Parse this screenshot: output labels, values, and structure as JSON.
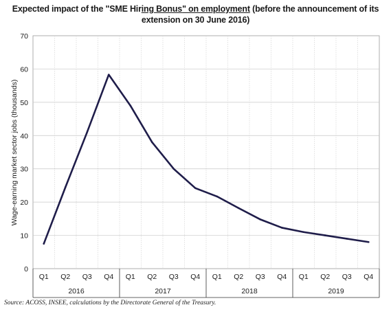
{
  "title": {
    "part1": "Expected impact of the \"SME Hir",
    "part2": "ing Bonus",
    "part3": "\" on employment",
    "part4": " (before the announcement of its",
    "line2": "extension on 30 June 2016)"
  },
  "source": "Source: ACOSS, INSEE, calculations by the Directorate General of the Treasury.",
  "chart_data": {
    "type": "line",
    "title": "Expected impact of the \"SME Hiring Bonus\" on employment (before the announcement of its extension on 30 June 2016)",
    "ylabel": "Wage-earning market sector jobs (thousands)",
    "xlabel": "",
    "ylim": [
      0,
      70
    ],
    "yticks": [
      0,
      10,
      20,
      30,
      40,
      50,
      60,
      70
    ],
    "grid": true,
    "categories": [
      "Q1",
      "Q2",
      "Q3",
      "Q4",
      "Q1",
      "Q2",
      "Q3",
      "Q4",
      "Q1",
      "Q2",
      "Q3",
      "Q4",
      "Q1",
      "Q2",
      "Q3",
      "Q4"
    ],
    "years": [
      "2016",
      "2017",
      "2018",
      "2019"
    ],
    "series": [
      {
        "values": [
          7.5,
          24.5,
          41,
          58.3,
          49,
          38,
          30,
          24.2,
          21.7,
          18.2,
          14.8,
          12.3,
          11,
          10,
          9,
          8
        ]
      }
    ],
    "line_color": "#1f1d4a"
  }
}
